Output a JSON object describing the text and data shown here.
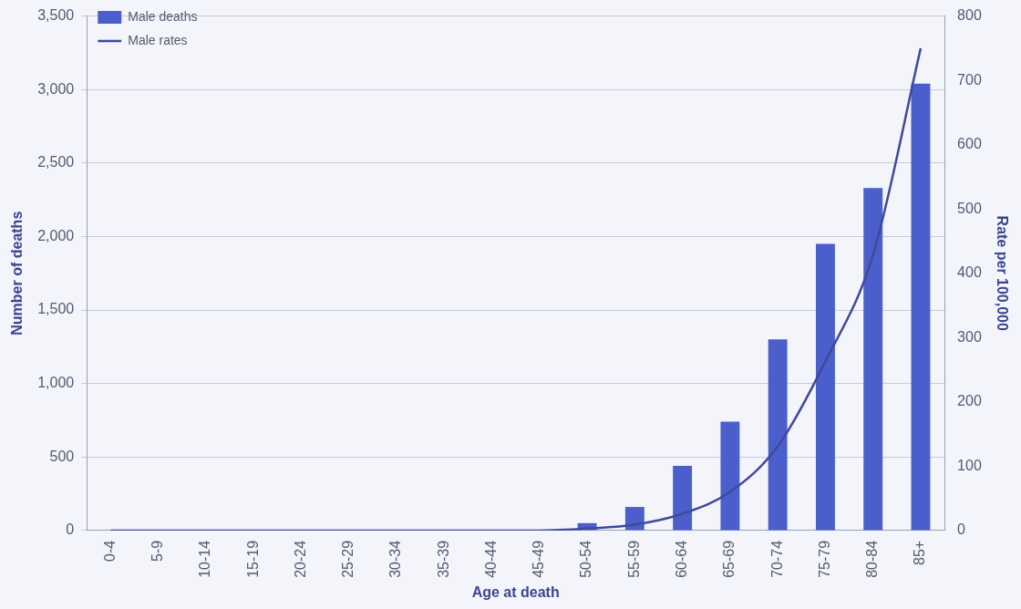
{
  "chart_data": {
    "type": "bar",
    "xlabel": "Age at death",
    "ylabel": "Number of deaths",
    "y2label": "Rate per 100,000",
    "categories": [
      "0-4",
      "5-9",
      "10-14",
      "15-19",
      "20-24",
      "25-29",
      "30-34",
      "35-39",
      "40-44",
      "45-49",
      "50-54",
      "55-59",
      "60-64",
      "65-69",
      "70-74",
      "75-79",
      "80-84",
      "85+"
    ],
    "series": [
      {
        "name": "Male deaths",
        "color": "#4a5fcc",
        "values": [
          0,
          0,
          0,
          0,
          0,
          0,
          0,
          0,
          0,
          0,
          50,
          160,
          440,
          740,
          1300,
          1950,
          2330,
          3040
        ]
      },
      {
        "name": "Male rates",
        "type": "line",
        "axis": "y2",
        "color": "#3f4a9a",
        "values": [
          0,
          0,
          0,
          0,
          0,
          0,
          0,
          0,
          0,
          0,
          3,
          9,
          26,
          60,
          131,
          263,
          429,
          750
        ]
      }
    ],
    "ylim": [
      0,
      3500
    ],
    "yticks": [
      0,
      500,
      {
        "value": 1000,
        "label": "1,000"
      },
      {
        "value": 1500,
        "label": "1,500"
      },
      {
        "value": 2000,
        "label": "2,000"
      },
      {
        "value": 2500,
        "label": "2,500"
      },
      {
        "value": 3000,
        "label": "3,000"
      },
      {
        "value": 3500,
        "label": "3,500"
      }
    ],
    "y2lim": [
      0,
      800
    ],
    "y2ticks": [
      0,
      100,
      200,
      300,
      400,
      500,
      600,
      700,
      800
    ],
    "grid": "y",
    "legend": "top left",
    "marker": "none",
    "line_style": "solid"
  }
}
